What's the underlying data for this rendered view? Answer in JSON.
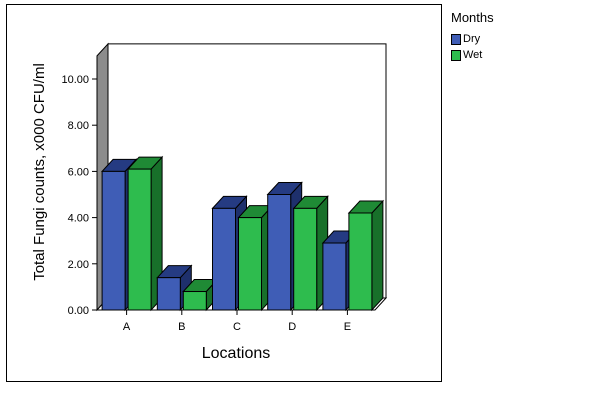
{
  "chart_data": {
    "type": "bar",
    "title": "",
    "xlabel": "Locations",
    "ylabel": "Total Fungi counts, x000 CFU/ml",
    "ylim": [
      0,
      11
    ],
    "yticks": [
      "0.00",
      "2.00",
      "4.00",
      "6.00",
      "8.00",
      "10.00"
    ],
    "categories": [
      "A",
      "B",
      "C",
      "D",
      "E"
    ],
    "series": [
      {
        "name": "Dry",
        "values": [
          6.0,
          1.4,
          4.4,
          5.0,
          2.9
        ]
      },
      {
        "name": "Wet",
        "values": [
          6.1,
          0.8,
          4.0,
          4.4,
          4.2
        ]
      }
    ],
    "legend": {
      "title": "Months",
      "position": "right"
    },
    "grid": false,
    "colors": {
      "Dry": {
        "front": "#3f5db6",
        "top": "#253b82",
        "side": "#1e306c"
      },
      "Wet": {
        "front": "#2ebc4e",
        "top": "#1f8a35",
        "side": "#18702a"
      },
      "back_wall": "#ffffff",
      "left_wall": "#8c8c8c"
    }
  }
}
